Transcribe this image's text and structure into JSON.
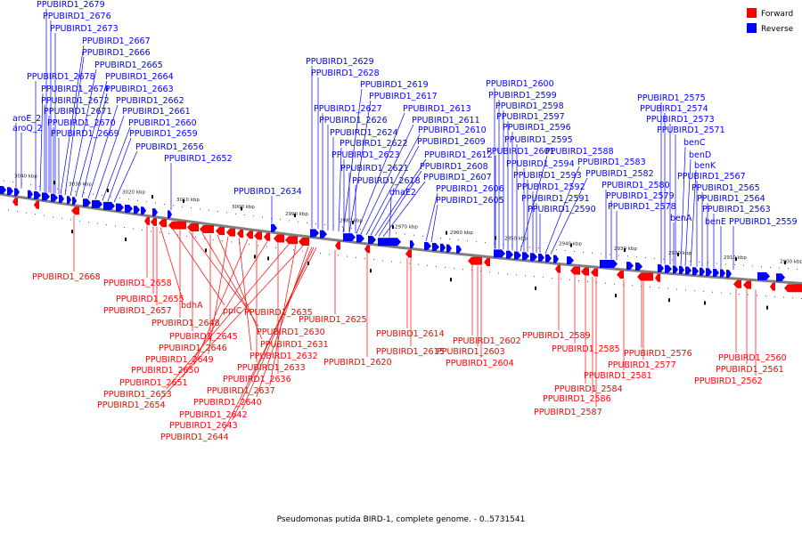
{
  "caption": "Pseudomonas putida BIRD-1, complete genome. - 0..5731541",
  "legend": [
    {
      "label": "Forward",
      "color": "#ff0000"
    },
    {
      "label": "Reverse",
      "color": "#0000ff"
    }
  ],
  "colors": {
    "forward": "#ff0000",
    "reverse": "#0000ff",
    "backbone": "#808080"
  },
  "ticks": [
    "3040 kbp",
    "3030 kbp",
    "3020 kbp",
    "3010 kbp",
    "3000 kbp",
    "2990 kbp",
    "2980 kbp",
    "2970 kbp",
    "2960 kbp",
    "2950 kbp",
    "2940 kbp",
    "2930 kbp",
    "2920 kbp",
    "2910 kbp",
    "2900 kbp"
  ],
  "reverse_labels": [
    "PPUBIRD1_2679",
    "PPUBIRD1_2676",
    "PPUBIRD1_2673",
    "PPUBIRD1_2667",
    "PPUBIRD1_2666",
    "PPUBIRD1_2665",
    "PPUBIRD1_2678",
    "PPUBIRD1_2664",
    "PPUBIRD1_2674",
    "PPUBIRD1_2663",
    "PPUBIRD1_2672",
    "PPUBIRD1_2662",
    "PPUBIRD1_2671",
    "PPUBIRD1_2661",
    "aroE_2",
    "PPUBIRD1_2670",
    "PPUBIRD1_2660",
    "aroQ_2",
    "PPUBIRD1_2669",
    "PPUBIRD1_2659",
    "PPUBIRD1_2656",
    "PPUBIRD1_2652",
    "PPUBIRD1_2634",
    "PPUBIRD1_2629",
    "PPUBIRD1_2628",
    "PPUBIRD1_2619",
    "PPUBIRD1_2617",
    "PPUBIRD1_2627",
    "PPUBIRD1_2613",
    "PPUBIRD1_2626",
    "PPUBIRD1_2611",
    "PPUBIRD1_2624",
    "PPUBIRD1_2610",
    "PPUBIRD1_2622",
    "PPUBIRD1_2609",
    "PPUBIRD1_2623",
    "PPUBIRD1_2612",
    "PPUBIRD1_2621",
    "PPUBIRD1_2608",
    "PPUBIRD1_2618",
    "PPUBIRD1_2607",
    "dnaE2",
    "PPUBIRD1_2606",
    "PPUBIRD1_2605",
    "PPUBIRD1_2600",
    "PPUBIRD1_2599",
    "PPUBIRD1_2598",
    "PPUBIRD1_2597",
    "PPUBIRD1_2596",
    "PPUBIRD1_2595",
    "PPUBIRD1_2601",
    "PPUBIRD1_2588",
    "PPUBIRD1_2594",
    "PPUBIRD1_2583",
    "PPUBIRD1_2593",
    "PPUBIRD1_2582",
    "PPUBIRD1_2592",
    "PPUBIRD1_2580",
    "PPUBIRD1_2591",
    "PPUBIRD1_2579",
    "PPUBIRD1_2590",
    "PPUBIRD1_2578",
    "PPUBIRD1_2575",
    "PPUBIRD1_2574",
    "PPUBIRD1_2573",
    "PPUBIRD1_2571",
    "benC",
    "benD",
    "benK",
    "PPUBIRD1_2567",
    "PPUBIRD1_2565",
    "PPUBIRD1_2564",
    "PPUBIRD1_2563",
    "benA",
    "benE",
    "PPUBIRD1_2559"
  ],
  "forward_labels": [
    "PPUBIRD1_2668",
    "PPUBIRD1_2658",
    "PPUBIRD1_2655",
    "bdhA",
    "PPUBIRD1_2657",
    "ppiC",
    "PPUBIRD1_2635",
    "PPUBIRD1_2648",
    "PPUBIRD1_2625",
    "PPUBIRD1_2645",
    "PPUBIRD1_2630",
    "PPUBIRD1_2646",
    "PPUBIRD1_2631",
    "PPUBIRD1_2649",
    "PPUBIRD1_2632",
    "PPUBIRD1_2650",
    "PPUBIRD1_2633",
    "PPUBIRD1_2651",
    "PPUBIRD1_2636",
    "PPUBIRD1_2653",
    "PPUBIRD1_2637",
    "PPUBIRD1_2654",
    "PPUBIRD1_2640",
    "PPUBIRD1_2642",
    "PPUBIRD1_2643",
    "PPUBIRD1_2644",
    "PPUBIRD1_2614",
    "PPUBIRD1_2615",
    "PPUBIRD1_2620",
    "PPUBIRD1_2602",
    "PPUBIRD1_2603",
    "PPUBIRD1_2604",
    "PPUBIRD1_2589",
    "PPUBIRD1_2585",
    "PPUBIRD1_2584",
    "PPUBIRD1_2586",
    "PPUBIRD1_2587",
    "PPUBIRD1_2576",
    "PPUBIRD1_2577",
    "PPUBIRD1_2581",
    "PPUBIRD1_2560",
    "PPUBIRD1_2561",
    "PPUBIRD1_2562"
  ]
}
